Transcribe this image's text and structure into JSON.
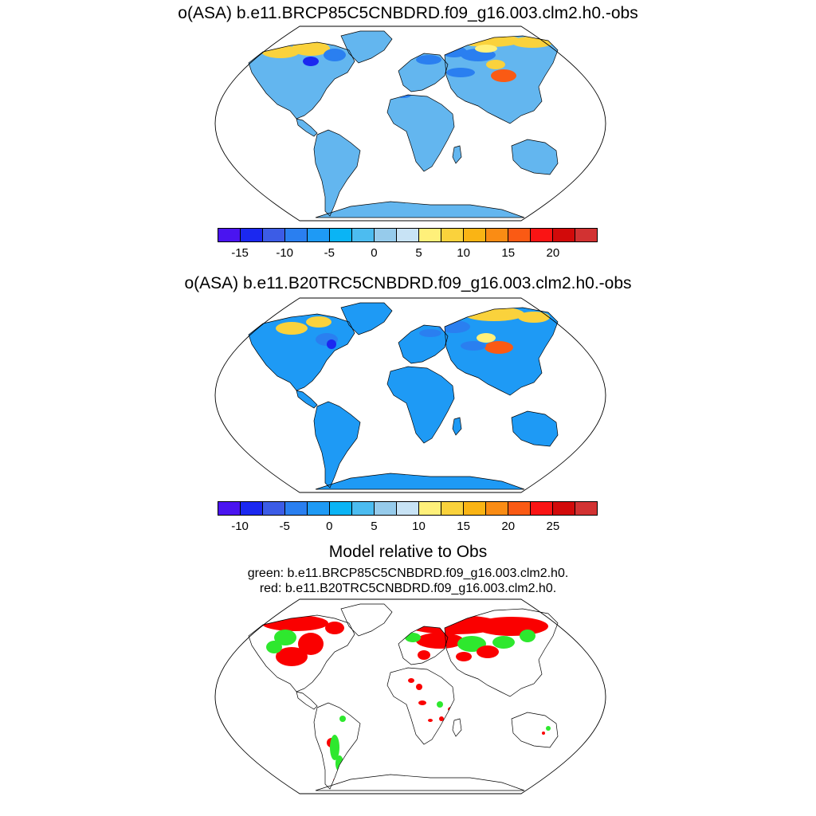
{
  "panels": [
    {
      "title": "o(ASA) b.e11.BRCP85C5CNBDRD.f09_g16.003.clm2.h0.-obs",
      "colorbar": {
        "colors": [
          "#4a14f0",
          "#1b28f0",
          "#3c5ce6",
          "#2a7ff0",
          "#1e9af5",
          "#0ab4f5",
          "#4cbcf0",
          "#96cbeb",
          "#c8e3f5",
          "#fff07a",
          "#fad23c",
          "#fab414",
          "#fa8c14",
          "#fa5a14",
          "#fa1414",
          "#d20a0a",
          "#d23232"
        ],
        "ticks": [
          {
            "label": "-15",
            "bound_index": 1
          },
          {
            "label": "-10",
            "bound_index": 3
          },
          {
            "label": "-5",
            "bound_index": 5
          },
          {
            "label": "0",
            "bound_index": 7
          },
          {
            "label": "5",
            "bound_index": 9
          },
          {
            "label": "10",
            "bound_index": 11
          },
          {
            "label": "15",
            "bound_index": 13
          },
          {
            "label": "20",
            "bound_index": 15
          }
        ]
      },
      "land_color": "#63b6ef",
      "hotspot_colors": [
        "#fad23c",
        "#2a7ff0",
        "#fa5a14",
        "#fff07a",
        "#1b28f0"
      ]
    },
    {
      "title": "o(ASA) b.e11.B20TRC5CNBDRD.f09_g16.003.clm2.h0.-obs",
      "colorbar": {
        "colors": [
          "#4a14f0",
          "#1b28f0",
          "#3c5ce6",
          "#2a7ff0",
          "#1e9af5",
          "#0ab4f5",
          "#4cbcf0",
          "#96cbeb",
          "#c8e3f5",
          "#fff07a",
          "#fad23c",
          "#fab414",
          "#fa8c14",
          "#fa5a14",
          "#fa1414",
          "#d20a0a",
          "#d23232"
        ],
        "ticks": [
          {
            "label": "-10",
            "bound_index": 1
          },
          {
            "label": "-5",
            "bound_index": 3
          },
          {
            "label": "0",
            "bound_index": 5
          },
          {
            "label": "5",
            "bound_index": 7
          },
          {
            "label": "10",
            "bound_index": 9
          },
          {
            "label": "15",
            "bound_index": 11
          },
          {
            "label": "20",
            "bound_index": 13
          },
          {
            "label": "25",
            "bound_index": 15
          }
        ]
      },
      "land_color": "#1e9af5",
      "hotspot_colors": [
        "#fad23c",
        "#2a7ff0",
        "#fa5a14",
        "#fff07a",
        "#1b28f0"
      ]
    },
    {
      "title": "Model relative to Obs",
      "subtitle_green": "green: b.e11.BRCP85C5CNBDRD.f09_g16.003.clm2.h0.",
      "subtitle_red": "red: b.e11.B20TRC5CNBDRD.f09_g16.003.clm2.h0.",
      "land_color": "#ffffff",
      "hotspot_colors": [
        "#fa0000",
        "#2ee82e"
      ]
    }
  ],
  "colors": {
    "outline": "#000000",
    "background": "#ffffff"
  }
}
